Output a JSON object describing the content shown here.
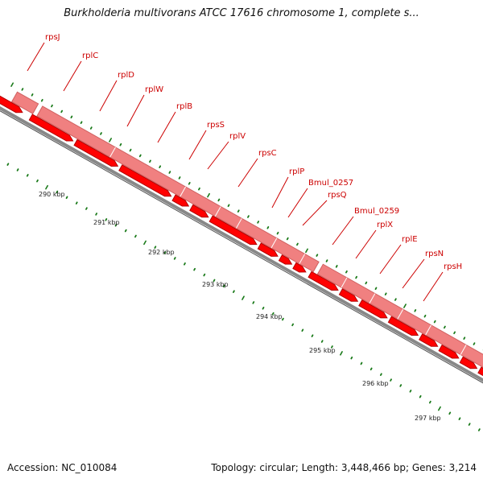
{
  "title": "Burkholderia multivorans ATCC 17616 chromosome 1, complete s...",
  "footer": {
    "accession": "Accession: NC_010084",
    "summary": "Topology: circular; Length: 3,448,466 bp; Genes: 3,214"
  },
  "colors": {
    "gene_label": "#cc0000",
    "gene_fill": "#ff0000",
    "gene_stroke": "#b30000",
    "feature_band": "#f08080",
    "backbone": "#888888",
    "tick": "#1a7a1a"
  },
  "genes": [
    {
      "name": "rpsJ"
    },
    {
      "name": "rplC"
    },
    {
      "name": "rplD"
    },
    {
      "name": "rplW"
    },
    {
      "name": "rplB"
    },
    {
      "name": "rpsS"
    },
    {
      "name": "rplV"
    },
    {
      "name": "rpsC"
    },
    {
      "name": "rplP"
    },
    {
      "name": "Bmul_0257"
    },
    {
      "name": "rpsQ"
    },
    {
      "name": "Bmul_0259"
    },
    {
      "name": "rplX"
    },
    {
      "name": "rplE"
    },
    {
      "name": "rpsN"
    },
    {
      "name": "rpsH"
    }
  ],
  "scale_labels": [
    "290 kbp",
    "291 kbp",
    "292 kbp",
    "293 kbp",
    "294 kbp",
    "295 kbp",
    "296 kbp",
    "297 kbp"
  ]
}
